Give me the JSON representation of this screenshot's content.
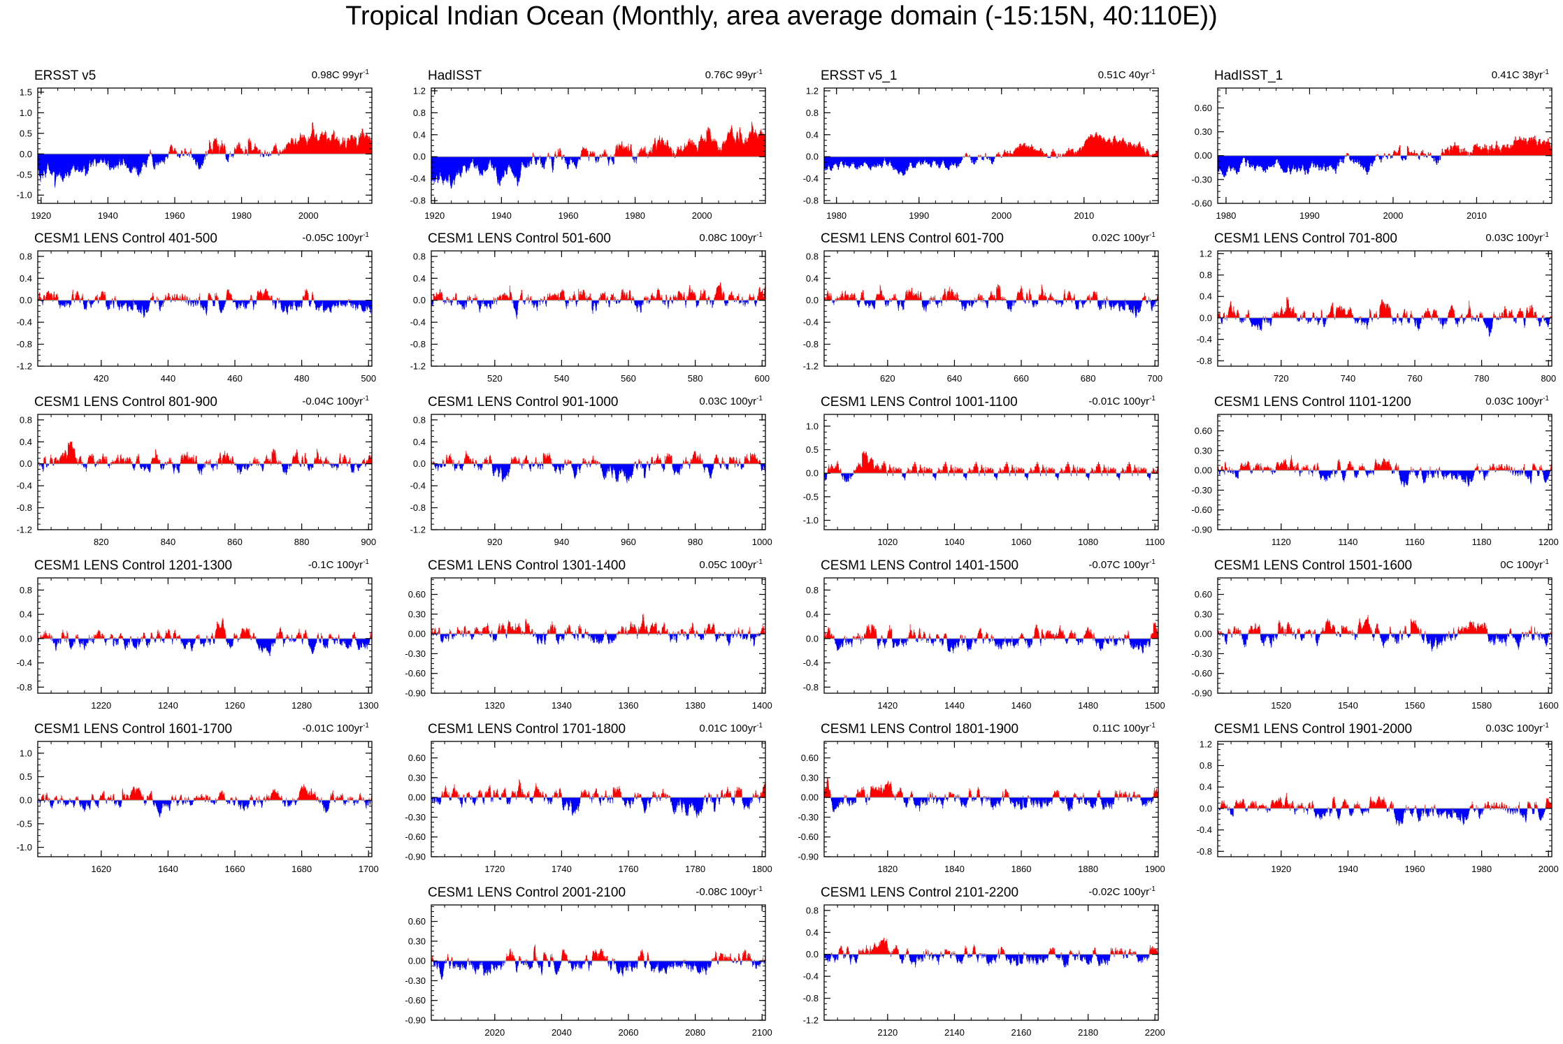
{
  "title": "Tropical Indian Ocean (Monthly, area average domain (-15:15N, 40:110E))",
  "colors": {
    "positive": "#ff0000",
    "negative": "#0000ff",
    "frame": "#000000",
    "zero_line": "#999999"
  },
  "trend_unit": "yr",
  "trend_unit_exp": "-1",
  "chart_data": [
    {
      "type": "bar",
      "id": "ersst-v5",
      "title": "ERSST v5",
      "trend": "0.98C 99yr",
      "trend_value": 0.98,
      "xlim": [
        1919,
        2019
      ],
      "ylim": [
        -1.2,
        1.6
      ],
      "xticks": [
        1920,
        1940,
        1960,
        1980,
        2000
      ],
      "xtick_labels": [
        "1920",
        "1940",
        "1960",
        "1980",
        "2000"
      ],
      "yticks": [
        -1.0,
        -0.5,
        0.0,
        0.5,
        1.0,
        1.5
      ],
      "ytick_labels": [
        "-1.0",
        "-0.5",
        "0.0",
        "0.5",
        "1.0",
        "1.5"
      ],
      "mode": "trend",
      "amp": 0.32,
      "baseline": 0.42,
      "seed": 11
    },
    {
      "type": "bar",
      "id": "hadisst",
      "title": "HadISST",
      "trend": "0.76C 99yr",
      "trend_value": 0.76,
      "xlim": [
        1919,
        2019
      ],
      "ylim": [
        -0.85,
        1.25
      ],
      "xticks": [
        1920,
        1940,
        1960,
        1980,
        2000
      ],
      "xtick_labels": [
        "1920",
        "1940",
        "1960",
        "1980",
        "2000"
      ],
      "yticks": [
        -0.8,
        -0.4,
        0.0,
        0.4,
        0.8,
        1.2
      ],
      "ytick_labels": [
        "-0.8",
        "-0.4",
        "0.0",
        "0.4",
        "0.8",
        "1.2"
      ],
      "mode": "trend",
      "amp": 0.26,
      "baseline": 0.38,
      "seed": 23
    },
    {
      "type": "bar",
      "id": "ersst-v5-1",
      "title": "ERSST v5_1",
      "trend": "0.51C 40yr",
      "trend_value": 0.51,
      "xlim": [
        1978.5,
        2019
      ],
      "ylim": [
        -0.85,
        1.25
      ],
      "xticks": [
        1980,
        1990,
        2000,
        2010
      ],
      "xtick_labels": [
        "1980",
        "1990",
        "2000",
        "2010"
      ],
      "yticks": [
        -0.8,
        -0.4,
        0.0,
        0.4,
        0.8,
        1.2
      ],
      "ytick_labels": [
        "-0.8",
        "-0.4",
        "0.0",
        "0.4",
        "0.8",
        "1.2"
      ],
      "mode": "trend",
      "amp": 0.22,
      "baseline": 0.25,
      "seed": 37
    },
    {
      "type": "bar",
      "id": "hadisst-1",
      "title": "HadISST_1",
      "trend": "0.41C 38yr",
      "trend_value": 0.41,
      "xlim": [
        1979,
        2019
      ],
      "ylim": [
        -0.6,
        0.85
      ],
      "xticks": [
        1980,
        1990,
        2000,
        2010
      ],
      "xtick_labels": [
        "1980",
        "1990",
        "2000",
        "2010"
      ],
      "yticks": [
        -0.6,
        -0.3,
        0.0,
        0.3,
        0.6
      ],
      "ytick_labels": [
        "-0.60",
        "-0.30",
        "0.00",
        "0.30",
        "0.60"
      ],
      "mode": "trend",
      "amp": 0.2,
      "baseline": 0.2,
      "seed": 41
    },
    {
      "type": "bar",
      "id": "lens-401",
      "title": "CESM1 LENS Control 401-500",
      "trend": "-0.05C 100yr",
      "trend_value": -0.05,
      "xlim": [
        401,
        501
      ],
      "ylim": [
        -1.2,
        0.9
      ],
      "xticks": [
        420,
        440,
        460,
        480,
        500
      ],
      "xtick_labels": [
        "420",
        "440",
        "460",
        "480",
        "500"
      ],
      "yticks": [
        -1.2,
        -0.8,
        -0.4,
        0.0,
        0.4,
        0.8
      ],
      "ytick_labels": [
        "-1.2",
        "-0.8",
        "-0.4",
        "0.0",
        "0.4",
        "0.8"
      ],
      "mode": "noise",
      "amp": 0.26,
      "seed": 101
    },
    {
      "type": "bar",
      "id": "lens-501",
      "title": "CESM1 LENS Control 501-600",
      "trend": "0.08C 100yr",
      "trend_value": 0.08,
      "xlim": [
        501,
        601
      ],
      "ylim": [
        -1.2,
        0.9
      ],
      "xticks": [
        520,
        540,
        560,
        580,
        600
      ],
      "xtick_labels": [
        "520",
        "540",
        "560",
        "580",
        "600"
      ],
      "yticks": [
        -1.2,
        -0.8,
        -0.4,
        0.0,
        0.4,
        0.8
      ],
      "ytick_labels": [
        "-1.2",
        "-0.8",
        "-0.4",
        "0.0",
        "0.4",
        "0.8"
      ],
      "mode": "noise",
      "amp": 0.26,
      "seed": 102
    },
    {
      "type": "bar",
      "id": "lens-601",
      "title": "CESM1 LENS Control 601-700",
      "trend": "0.02C 100yr",
      "trend_value": 0.02,
      "xlim": [
        601,
        701
      ],
      "ylim": [
        -1.2,
        0.9
      ],
      "xticks": [
        620,
        640,
        660,
        680,
        700
      ],
      "xtick_labels": [
        "620",
        "640",
        "660",
        "680",
        "700"
      ],
      "yticks": [
        -1.2,
        -0.8,
        -0.4,
        0.0,
        0.4,
        0.8
      ],
      "ytick_labels": [
        "-1.2",
        "-0.8",
        "-0.4",
        "0.0",
        "0.4",
        "0.8"
      ],
      "mode": "noise",
      "amp": 0.26,
      "seed": 103
    },
    {
      "type": "bar",
      "id": "lens-701",
      "title": "CESM1 LENS Control 701-800",
      "trend": "0.03C 100yr",
      "trend_value": 0.03,
      "xlim": [
        701,
        801
      ],
      "ylim": [
        -0.9,
        1.25
      ],
      "xticks": [
        720,
        740,
        760,
        780,
        800
      ],
      "xtick_labels": [
        "720",
        "740",
        "760",
        "780",
        "800"
      ],
      "yticks": [
        -0.8,
        -0.4,
        0.0,
        0.4,
        0.8,
        1.2
      ],
      "ytick_labels": [
        "-0.8",
        "-0.4",
        "0.0",
        "0.4",
        "0.8",
        "1.2"
      ],
      "mode": "noise",
      "amp": 0.26,
      "seed": 104
    },
    {
      "type": "bar",
      "id": "lens-801",
      "title": "CESM1 LENS Control 801-900",
      "trend": "-0.04C 100yr",
      "trend_value": -0.04,
      "xlim": [
        801,
        901
      ],
      "ylim": [
        -1.2,
        0.9
      ],
      "xticks": [
        820,
        840,
        860,
        880,
        900
      ],
      "xtick_labels": [
        "820",
        "840",
        "860",
        "880",
        "900"
      ],
      "yticks": [
        -1.2,
        -0.8,
        -0.4,
        0.0,
        0.4,
        0.8
      ],
      "ytick_labels": [
        "-1.2",
        "-0.8",
        "-0.4",
        "0.0",
        "0.4",
        "0.8"
      ],
      "mode": "noise",
      "amp": 0.25,
      "seed": 105
    },
    {
      "type": "bar",
      "id": "lens-901",
      "title": "CESM1 LENS Control 901-1000",
      "trend": "0.03C 100yr",
      "trend_value": 0.03,
      "xlim": [
        901,
        1001
      ],
      "ylim": [
        -1.2,
        0.9
      ],
      "xticks": [
        920,
        940,
        960,
        980,
        1000
      ],
      "xtick_labels": [
        "920",
        "940",
        "960",
        "980",
        "1000"
      ],
      "yticks": [
        -1.2,
        -0.8,
        -0.4,
        0.0,
        0.4,
        0.8
      ],
      "ytick_labels": [
        "-1.2",
        "-0.8",
        "-0.4",
        "0.0",
        "0.4",
        "0.8"
      ],
      "mode": "noise",
      "amp": 0.25,
      "seed": 106
    },
    {
      "type": "bar",
      "id": "lens-1001",
      "title": "CESM1 LENS Control 1001-1100",
      "trend": "-0.01C 100yr",
      "trend_value": -0.01,
      "xlim": [
        1001,
        1101
      ],
      "ylim": [
        -1.2,
        1.25
      ],
      "xticks": [
        1020,
        1040,
        1060,
        1080,
        1100
      ],
      "xtick_labels": [
        "1020",
        "1040",
        "1060",
        "1080",
        "1100"
      ],
      "yticks": [
        -1.0,
        -0.5,
        0.0,
        0.5,
        1.0
      ],
      "ytick_labels": [
        "-1.0",
        "-0.5",
        "0.0",
        "0.5",
        "1.0"
      ],
      "mode": "noise",
      "amp": 0.28,
      "seed": 107
    },
    {
      "type": "bar",
      "id": "lens-1101",
      "title": "CESM1 LENS Control 1101-1200",
      "trend": "0.03C 100yr",
      "trend_value": 0.03,
      "xlim": [
        1101,
        1201
      ],
      "ylim": [
        -0.9,
        0.85
      ],
      "xticks": [
        1120,
        1140,
        1160,
        1180,
        1200
      ],
      "xtick_labels": [
        "1120",
        "1140",
        "1160",
        "1180",
        "1200"
      ],
      "yticks": [
        -0.9,
        -0.6,
        -0.3,
        0.0,
        0.3,
        0.6
      ],
      "ytick_labels": [
        "-0.90",
        "-0.60",
        "-0.30",
        "0.00",
        "0.30",
        "0.60"
      ],
      "mode": "noise",
      "amp": 0.2,
      "seed": 108
    },
    {
      "type": "bar",
      "id": "lens-1201",
      "title": "CESM1 LENS Control 1201-1300",
      "trend": "-0.1C 100yr",
      "trend_value": -0.1,
      "xlim": [
        1201,
        1301
      ],
      "ylim": [
        -0.9,
        1.0
      ],
      "xticks": [
        1220,
        1240,
        1260,
        1280,
        1300
      ],
      "xtick_labels": [
        "1220",
        "1240",
        "1260",
        "1280",
        "1300"
      ],
      "yticks": [
        -0.8,
        -0.4,
        0.0,
        0.4,
        0.8
      ],
      "ytick_labels": [
        "-0.8",
        "-0.4",
        "0.0",
        "0.4",
        "0.8"
      ],
      "mode": "noise",
      "amp": 0.22,
      "seed": 109
    },
    {
      "type": "bar",
      "id": "lens-1301",
      "title": "CESM1 LENS Control 1301-1400",
      "trend": "0.05C 100yr",
      "trend_value": 0.05,
      "xlim": [
        1301,
        1401
      ],
      "ylim": [
        -0.9,
        0.85
      ],
      "xticks": [
        1320,
        1340,
        1360,
        1380,
        1400
      ],
      "xtick_labels": [
        "1320",
        "1340",
        "1360",
        "1380",
        "1400"
      ],
      "yticks": [
        -0.9,
        -0.6,
        -0.3,
        0.0,
        0.3,
        0.6
      ],
      "ytick_labels": [
        "-0.90",
        "-0.60",
        "-0.30",
        "0.00",
        "0.30",
        "0.60"
      ],
      "mode": "noise",
      "amp": 0.22,
      "seed": 110
    },
    {
      "type": "bar",
      "id": "lens-1401",
      "title": "CESM1 LENS Control 1401-1500",
      "trend": "-0.07C 100yr",
      "trend_value": -0.07,
      "xlim": [
        1401,
        1501
      ],
      "ylim": [
        -0.9,
        1.0
      ],
      "xticks": [
        1420,
        1440,
        1460,
        1480,
        1500
      ],
      "xtick_labels": [
        "1420",
        "1440",
        "1460",
        "1480",
        "1500"
      ],
      "yticks": [
        -0.8,
        -0.4,
        0.0,
        0.4,
        0.8
      ],
      "ytick_labels": [
        "-0.8",
        "-0.4",
        "0.0",
        "0.4",
        "0.8"
      ],
      "mode": "noise",
      "amp": 0.23,
      "seed": 111
    },
    {
      "type": "bar",
      "id": "lens-1501",
      "title": "CESM1 LENS Control 1501-1600",
      "trend": "0C 100yr",
      "trend_value": 0.0,
      "xlim": [
        1501,
        1601
      ],
      "ylim": [
        -0.9,
        0.85
      ],
      "xticks": [
        1520,
        1540,
        1560,
        1580,
        1600
      ],
      "xtick_labels": [
        "1520",
        "1540",
        "1560",
        "1580",
        "1600"
      ],
      "yticks": [
        -0.9,
        -0.6,
        -0.3,
        0.0,
        0.3,
        0.6
      ],
      "ytick_labels": [
        "-0.90",
        "-0.60",
        "-0.30",
        "0.00",
        "0.30",
        "0.60"
      ],
      "mode": "noise",
      "amp": 0.22,
      "seed": 112
    },
    {
      "type": "bar",
      "id": "lens-1601",
      "title": "CESM1 LENS Control 1601-1700",
      "trend": "-0.01C 100yr",
      "trend_value": -0.01,
      "xlim": [
        1601,
        1701
      ],
      "ylim": [
        -1.2,
        1.25
      ],
      "xticks": [
        1620,
        1640,
        1660,
        1680,
        1700
      ],
      "xtick_labels": [
        "1620",
        "1640",
        "1660",
        "1680",
        "1700"
      ],
      "yticks": [
        -1.0,
        -0.5,
        0.0,
        0.5,
        1.0
      ],
      "ytick_labels": [
        "-1.0",
        "-0.5",
        "0.0",
        "0.5",
        "1.0"
      ],
      "mode": "noise",
      "amp": 0.26,
      "seed": 113
    },
    {
      "type": "bar",
      "id": "lens-1701",
      "title": "CESM1 LENS Control 1701-1800",
      "trend": "0.01C 100yr",
      "trend_value": 0.01,
      "xlim": [
        1701,
        1801
      ],
      "ylim": [
        -0.9,
        0.85
      ],
      "xticks": [
        1720,
        1740,
        1760,
        1780,
        1800
      ],
      "xtick_labels": [
        "1720",
        "1740",
        "1760",
        "1780",
        "1800"
      ],
      "yticks": [
        -0.9,
        -0.6,
        -0.3,
        0.0,
        0.3,
        0.6
      ],
      "ytick_labels": [
        "-0.90",
        "-0.60",
        "-0.30",
        "0.00",
        "0.30",
        "0.60"
      ],
      "mode": "noise",
      "amp": 0.22,
      "seed": 114
    },
    {
      "type": "bar",
      "id": "lens-1801",
      "title": "CESM1 LENS Control 1801-1900",
      "trend": "0.11C 100yr",
      "trend_value": 0.11,
      "xlim": [
        1801,
        1901
      ],
      "ylim": [
        -0.9,
        0.85
      ],
      "xticks": [
        1820,
        1840,
        1860,
        1880,
        1900
      ],
      "xtick_labels": [
        "1820",
        "1840",
        "1860",
        "1880",
        "1900"
      ],
      "yticks": [
        -0.9,
        -0.6,
        -0.3,
        0.0,
        0.3,
        0.6
      ],
      "ytick_labels": [
        "-0.90",
        "-0.60",
        "-0.30",
        "0.00",
        "0.30",
        "0.60"
      ],
      "mode": "noise",
      "amp": 0.22,
      "seed": 115
    },
    {
      "type": "bar",
      "id": "lens-1901",
      "title": "CESM1 LENS Control 1901-2000",
      "trend": "0.03C 100yr",
      "trend_value": 0.03,
      "xlim": [
        1901,
        2001
      ],
      "ylim": [
        -0.9,
        1.25
      ],
      "xticks": [
        1920,
        1940,
        1960,
        1980,
        2000
      ],
      "xtick_labels": [
        "1920",
        "1940",
        "1960",
        "1980",
        "2000"
      ],
      "yticks": [
        -0.8,
        -0.4,
        0.0,
        0.4,
        0.8,
        1.2
      ],
      "ytick_labels": [
        "-0.8",
        "-0.4",
        "0.0",
        "0.4",
        "0.8",
        "1.2"
      ],
      "mode": "noise",
      "amp": 0.25,
      "seed": 116
    },
    {
      "type": "bar",
      "id": "lens-2001",
      "title": "CESM1 LENS Control 2001-2100",
      "trend": "-0.08C 100yr",
      "trend_value": -0.08,
      "xlim": [
        2001,
        2101
      ],
      "ylim": [
        -0.9,
        0.85
      ],
      "xticks": [
        2020,
        2040,
        2060,
        2080,
        2100
      ],
      "xtick_labels": [
        "2020",
        "2040",
        "2060",
        "2080",
        "2100"
      ],
      "yticks": [
        -0.9,
        -0.6,
        -0.3,
        0.0,
        0.3,
        0.6
      ],
      "ytick_labels": [
        "-0.90",
        "-0.60",
        "-0.30",
        "0.00",
        "0.30",
        "0.60"
      ],
      "mode": "noise",
      "amp": 0.23,
      "seed": 117
    },
    {
      "type": "bar",
      "id": "lens-2101",
      "title": "CESM1 LENS Control 2101-2200",
      "trend": "-0.02C 100yr",
      "trend_value": -0.02,
      "xlim": [
        2101,
        2201
      ],
      "ylim": [
        -1.2,
        0.9
      ],
      "xticks": [
        2120,
        2140,
        2160,
        2180,
        2200
      ],
      "xtick_labels": [
        "2120",
        "2140",
        "2160",
        "2180",
        "2200"
      ],
      "yticks": [
        -1.2,
        -0.8,
        -0.4,
        0.0,
        0.4,
        0.8
      ],
      "ytick_labels": [
        "-1.2",
        "-0.8",
        "-0.4",
        "0.0",
        "0.4",
        "0.8"
      ],
      "mode": "noise",
      "amp": 0.25,
      "seed": 118
    }
  ]
}
